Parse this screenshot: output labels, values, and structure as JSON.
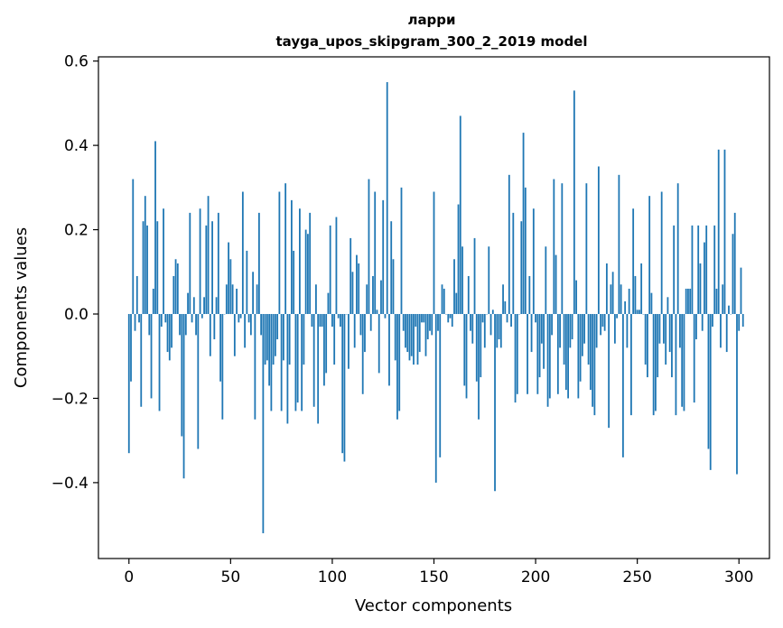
{
  "chart_data": {
    "type": "bar",
    "title_line1": "ларри",
    "title_line2": "tayga_upos_skipgram_300_2_2019 model",
    "xlabel": "Vector components",
    "ylabel": "Components values",
    "xlim": [
      -15,
      315
    ],
    "ylim": [
      -0.58,
      0.61
    ],
    "xticks": [
      0,
      50,
      100,
      150,
      200,
      250,
      300
    ],
    "xtick_labels": [
      "0",
      "50",
      "100",
      "150",
      "200",
      "250",
      "300"
    ],
    "yticks": [
      -0.4,
      -0.2,
      0.0,
      0.2,
      0.4,
      0.6
    ],
    "ytick_labels": [
      "−0.4",
      "−0.2",
      "0.0",
      "0.2",
      "0.4",
      "0.6"
    ],
    "bar_color": "#1f77b4",
    "grid": false,
    "values": [
      -0.33,
      -0.16,
      0.32,
      -0.04,
      0.09,
      -0.02,
      -0.22,
      0.22,
      0.28,
      0.21,
      -0.05,
      -0.2,
      0.06,
      0.41,
      0.22,
      -0.23,
      -0.03,
      0.25,
      -0.02,
      -0.09,
      -0.11,
      -0.08,
      0.09,
      0.13,
      0.12,
      -0.05,
      -0.29,
      -0.39,
      -0.05,
      0.05,
      0.24,
      -0.02,
      0.04,
      -0.05,
      -0.32,
      0.25,
      -0.01,
      0.04,
      0.21,
      0.28,
      -0.1,
      0.22,
      -0.06,
      0.04,
      0.24,
      -0.16,
      -0.25,
      0.0,
      0.07,
      0.17,
      0.13,
      0.07,
      -0.1,
      0.06,
      -0.02,
      -0.01,
      0.29,
      -0.08,
      0.15,
      -0.02,
      -0.05,
      0.1,
      -0.25,
      0.07,
      0.24,
      -0.05,
      -0.52,
      -0.12,
      -0.11,
      -0.17,
      -0.23,
      -0.12,
      -0.1,
      -0.06,
      0.29,
      -0.23,
      -0.11,
      0.31,
      -0.26,
      -0.12,
      0.27,
      0.15,
      -0.23,
      -0.21,
      0.25,
      -0.23,
      -0.12,
      0.2,
      0.19,
      0.24,
      -0.03,
      -0.22,
      0.07,
      -0.26,
      -0.03,
      -0.03,
      -0.17,
      -0.14,
      0.05,
      0.21,
      -0.03,
      -0.12,
      0.23,
      -0.01,
      -0.03,
      -0.33,
      -0.35,
      0.0,
      -0.13,
      0.18,
      0.1,
      -0.08,
      0.14,
      0.12,
      -0.05,
      -0.19,
      -0.09,
      0.07,
      0.32,
      -0.04,
      0.09,
      0.29,
      0.01,
      -0.14,
      0.08,
      0.27,
      -0.01,
      0.55,
      -0.17,
      0.22,
      0.13,
      -0.11,
      -0.25,
      -0.23,
      0.3,
      -0.04,
      -0.08,
      -0.09,
      -0.11,
      -0.1,
      -0.12,
      -0.03,
      -0.12,
      -0.09,
      -0.02,
      -0.02,
      -0.1,
      -0.06,
      -0.04,
      -0.05,
      0.29,
      -0.4,
      -0.04,
      -0.34,
      0.07,
      0.06,
      0.0,
      -0.02,
      -0.01,
      -0.03,
      0.13,
      0.05,
      0.26,
      0.47,
      0.16,
      -0.17,
      -0.2,
      0.09,
      -0.04,
      -0.07,
      0.18,
      -0.16,
      -0.25,
      -0.15,
      -0.02,
      -0.08,
      0.0,
      0.16,
      -0.05,
      0.01,
      -0.42,
      -0.08,
      -0.06,
      -0.08,
      0.07,
      0.03,
      -0.02,
      0.33,
      -0.03,
      0.24,
      -0.21,
      -0.19,
      0.0,
      0.22,
      0.43,
      0.3,
      -0.19,
      0.09,
      -0.09,
      0.25,
      -0.02,
      -0.19,
      -0.15,
      -0.07,
      -0.13,
      0.16,
      -0.22,
      -0.2,
      -0.05,
      0.32,
      0.14,
      -0.19,
      -0.08,
      0.31,
      -0.12,
      -0.18,
      -0.2,
      -0.08,
      -0.06,
      0.53,
      0.08,
      -0.2,
      -0.16,
      -0.1,
      -0.07,
      0.31,
      -0.12,
      -0.18,
      -0.22,
      -0.24,
      -0.08,
      0.35,
      -0.05,
      -0.03,
      -0.04,
      0.12,
      -0.27,
      0.07,
      0.1,
      -0.07,
      -0.01,
      0.33,
      0.07,
      -0.34,
      0.03,
      -0.08,
      0.06,
      -0.24,
      0.25,
      0.09,
      0.01,
      0.01,
      0.12,
      0.0,
      -0.12,
      -0.15,
      0.28,
      0.05,
      -0.24,
      -0.23,
      -0.15,
      -0.07,
      0.29,
      -0.07,
      -0.12,
      0.04,
      -0.09,
      -0.15,
      0.21,
      -0.24,
      0.31,
      -0.08,
      -0.22,
      -0.23,
      0.06,
      0.06,
      0.06,
      0.21,
      -0.21,
      -0.06,
      0.21,
      0.12,
      -0.04,
      0.17,
      0.21,
      -0.32,
      -0.37,
      -0.03,
      0.21,
      0.06,
      0.39,
      -0.08,
      0.07,
      0.39,
      -0.09,
      0.02,
      0.0,
      0.19,
      0.24,
      -0.38,
      -0.04,
      0.11,
      -0.03
    ]
  }
}
